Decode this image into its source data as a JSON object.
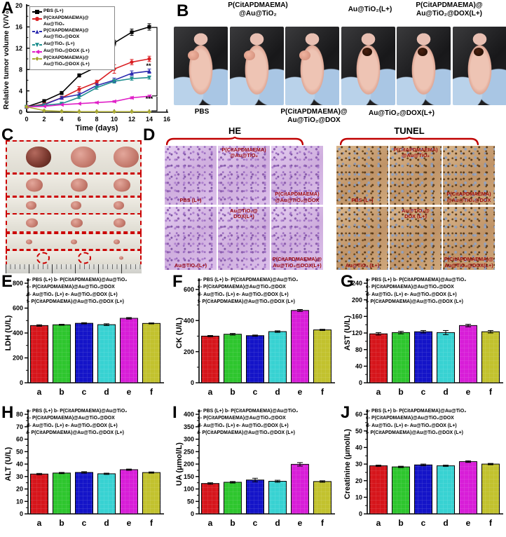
{
  "colors": {
    "bar_colors": [
      "#d6151b",
      "#2ec62e",
      "#1414c8",
      "#38d2d2",
      "#d81ed8",
      "#c2c22e"
    ],
    "label_red": "#9e0b0f",
    "brace_red": "#c00000"
  },
  "panel_a": {
    "letter": "A",
    "significance_top": "**",
    "significance_bottom": "***"
  },
  "panel_b": {
    "letter": "B",
    "top_labels": [
      "P(CitAPDMAEMA)\n@Au@TiO₂",
      "Au@TiO₂(L+)",
      "P(CitAPDMAEMA)@\nAu@TiO₂@DOX(L+)"
    ],
    "bottom_labels": [
      "PBS",
      "P(CitAPDMAEMA)@\nAu@TiO₂@DOX",
      "Au@TiO₂@DOX(L+)"
    ]
  },
  "panel_c": {
    "letter": "C",
    "rows": [
      {
        "tumors": 3,
        "w": 36,
        "h": 30,
        "dark_first": true
      },
      {
        "tumors": 3,
        "w": 24,
        "h": 19,
        "dark_first": false
      },
      {
        "tumors": 3,
        "w": 15,
        "h": 12,
        "dark_first": false
      },
      {
        "tumors": 3,
        "w": 17,
        "h": 13,
        "dark_first": false
      },
      {
        "tumors": 3,
        "w": 9,
        "h": 7,
        "dark_first": false
      },
      {
        "tumors": 1,
        "w": 6,
        "h": 5,
        "dark_first": false,
        "empty_circles": 2
      }
    ]
  },
  "panel_d": {
    "letter": "D",
    "groups": [
      {
        "title": "HE",
        "cells": [
          {
            "label": "PBS (L+)",
            "pos": "pos-bottom"
          },
          {
            "label": "P(CitAPDMAEMA)\n@Au@TiO₂",
            "pos": "pos-top"
          },
          {
            "label": "P(CitAPDMAEMA)\n@Au@TiO₂@DOX",
            "pos": "pos-bottom"
          },
          {
            "label": "Au@TiO₂(L+)",
            "pos": "pos-bottom"
          },
          {
            "label": "Au@TiO₂@\nDOX(L+)",
            "pos": "pos-top"
          },
          {
            "label": "P(CitAPDMAEMA)@\nAu@TiO₂@DOX(L+)",
            "pos": "pos-bottom"
          }
        ]
      },
      {
        "title": "TUNEL",
        "cells": [
          {
            "label": "PBS (L+)",
            "pos": "pos-bottom"
          },
          {
            "label": "P(CitAPDMAEMA)\n@Au@TiO₂",
            "pos": "pos-top"
          },
          {
            "label": "P(CitAPDMAEMA)\n@Au@TiO₂@DOX",
            "pos": "pos-bottom"
          },
          {
            "label": "Au@TiO₂ (L+)",
            "pos": "pos-bottom"
          },
          {
            "label": "Au@TiO₂@\nDOX (L+)",
            "pos": "pos-top"
          },
          {
            "label": "P(CitAPDMAEMA)@\nAu@TiO₂@DOX(L+)",
            "pos": "pos-bottom"
          }
        ]
      }
    ]
  },
  "bar_legend": {
    "lines": [
      "a- PBS (L+)  b- P(CitAPDMAEMA)@Au@TiO₂",
      "c- P(CitAPDMAEMA)@Au@TiO₂@DOX",
      "d- Au@TiO₂ (L+)  e- Au@TiO₂@DOX (L+)",
      "f- P(CitAPDMAEMA)@Au@TiO₂@DOX (L+)"
    ]
  },
  "chart_data": [
    {
      "id": "A",
      "type": "line",
      "title": "",
      "xlabel": "Time (days)",
      "ylabel": "Relative tumor volume (V/V₀)",
      "xlim": [
        0,
        16
      ],
      "ylim": [
        0,
        20
      ],
      "xticks": [
        0,
        2,
        4,
        6,
        8,
        10,
        12,
        14,
        16
      ],
      "yticks": [
        0,
        4,
        8,
        12,
        16,
        20
      ],
      "x": [
        0,
        2,
        4,
        6,
        8,
        10,
        12,
        14
      ],
      "legend_position": "top-left",
      "series": [
        {
          "name": "PBS (L+)",
          "legend_label": "PBS (L+)",
          "color": "#000000",
          "marker": "square",
          "values": [
            1,
            2.1,
            3.6,
            6.9,
            8.5,
            13,
            15,
            16
          ],
          "errors": [
            0.1,
            0.2,
            0.3,
            0.3,
            0.4,
            0.5,
            0.6,
            0.6
          ]
        },
        {
          "name": "P(CitAPDMAEMA)@Au@TiO₂",
          "legend_label": "P(CitAPDMAEMA)@\nAu@TiO₂",
          "color": "#da1f23",
          "marker": "circle",
          "values": [
            1,
            1.5,
            2.7,
            4.3,
            5.6,
            8.1,
            9.4,
            10
          ],
          "errors": [
            0.1,
            0.15,
            0.3,
            0.5,
            0.4,
            0.8,
            0.5,
            0.5
          ]
        },
        {
          "name": "P(CitAPDMAEMA)@Au@TiO₂@DOX",
          "legend_label": "P(CitAPDMAEMA)@\nAu@TiO₂@DOX",
          "color": "#2b2bb0",
          "marker": "tri-up",
          "values": [
            1,
            1.4,
            2.7,
            3.3,
            5.0,
            6.0,
            7.3,
            7.7
          ],
          "errors": [
            0.1,
            0.15,
            0.25,
            0.3,
            0.35,
            0.4,
            0.45,
            0.4
          ]
        },
        {
          "name": "Au@TiO₂ (L+)",
          "legend_label": "Au@TiO₂ (L+)",
          "color": "#1f8f8f",
          "marker": "tri-down",
          "values": [
            1,
            1.3,
            1.6,
            2.8,
            4.6,
            5.8,
            6.3,
            6.5
          ],
          "errors": [
            0.1,
            0.1,
            0.15,
            0.25,
            0.3,
            0.35,
            0.3,
            0.3
          ]
        },
        {
          "name": "Au@TiO₂@DOX (L+)",
          "legend_label": "Au@TiO₂@DOX (L+)",
          "color": "#e020c8",
          "marker": "tri-left",
          "values": [
            1,
            1.1,
            1.4,
            1.6,
            1.8,
            2.0,
            2.7,
            3.0
          ],
          "errors": [
            0.05,
            0.08,
            0.1,
            0.1,
            0.12,
            0.15,
            0.2,
            0.2
          ]
        },
        {
          "name": "P(CitAPDMAEMA)@Au@TiO₂@DOX (L+)",
          "legend_label": "P(CitAPDMAEMA)@\nAu@TiO₂@DOX (L+)",
          "color": "#a8a832",
          "marker": "diamond",
          "values": [
            1,
            0.3,
            0.15,
            0.1,
            0.1,
            0.1,
            0.1,
            0.1
          ],
          "errors": [
            0.03,
            0.03,
            0.03,
            0.03,
            0.03,
            0.03,
            0.03,
            0.03
          ]
        }
      ]
    },
    {
      "id": "E",
      "type": "bar",
      "letter": "E",
      "ylabel": "LDH (U/L)",
      "categories": [
        "a",
        "b",
        "c",
        "d",
        "e",
        "f"
      ],
      "values": [
        460,
        466,
        478,
        467,
        518,
        477
      ],
      "errors": [
        6,
        4,
        5,
        7,
        6,
        4
      ],
      "ylim": [
        0,
        800
      ],
      "yticks": [
        0,
        200,
        400,
        600,
        800
      ]
    },
    {
      "id": "F",
      "type": "bar",
      "letter": "F",
      "ylabel": "CK (U/L)",
      "categories": [
        "a",
        "b",
        "c",
        "d",
        "e",
        "f"
      ],
      "values": [
        300,
        312,
        303,
        329,
        465,
        340
      ],
      "errors": [
        4,
        5,
        4,
        5,
        6,
        4
      ],
      "ylim": [
        0,
        640
      ],
      "yticks": [
        0,
        200,
        400,
        600
      ]
    },
    {
      "id": "G",
      "type": "bar",
      "letter": "G",
      "ylabel": "AST (U/L)",
      "categories": [
        "a",
        "b",
        "c",
        "d",
        "e",
        "f"
      ],
      "values": [
        118,
        121,
        123,
        121,
        138,
        123
      ],
      "errors": [
        3,
        3,
        3,
        5,
        3,
        3
      ],
      "ylim": [
        0,
        240
      ],
      "yticks": [
        0,
        40,
        80,
        120,
        160,
        200,
        240
      ]
    },
    {
      "id": "H",
      "type": "bar",
      "letter": "H",
      "ylabel": "ALT (U/L)",
      "categories": [
        "a",
        "b",
        "c",
        "d",
        "e",
        "f"
      ],
      "values": [
        32,
        32.8,
        33.3,
        32.2,
        35.5,
        33.2
      ],
      "errors": [
        0.5,
        0.5,
        0.6,
        0.5,
        0.5,
        0.5
      ],
      "ylim": [
        0,
        80
      ],
      "yticks": [
        0,
        10,
        20,
        30,
        40,
        50,
        60,
        70,
        80
      ]
    },
    {
      "id": "I",
      "type": "bar",
      "letter": "I",
      "ylabel": "UA (μmol/L)",
      "categories": [
        "a",
        "b",
        "c",
        "d",
        "e",
        "f"
      ],
      "values": [
        122,
        127,
        136,
        131,
        199,
        130
      ],
      "errors": [
        3,
        3,
        7,
        4,
        7,
        3
      ],
      "ylim": [
        0,
        400
      ],
      "yticks": [
        0,
        50,
        100,
        150,
        200,
        250,
        300,
        350,
        400
      ]
    },
    {
      "id": "J",
      "type": "bar",
      "letter": "J",
      "ylabel": "Creatinine (μmol/L)",
      "categories": [
        "a",
        "b",
        "c",
        "d",
        "e",
        "f"
      ],
      "values": [
        29,
        28.3,
        29.5,
        29,
        31.5,
        30
      ],
      "errors": [
        0.4,
        0.4,
        0.5,
        0.4,
        0.5,
        0.4
      ],
      "ylim": [
        0,
        60
      ],
      "yticks": [
        0,
        10,
        20,
        30,
        40,
        50,
        60
      ]
    }
  ]
}
